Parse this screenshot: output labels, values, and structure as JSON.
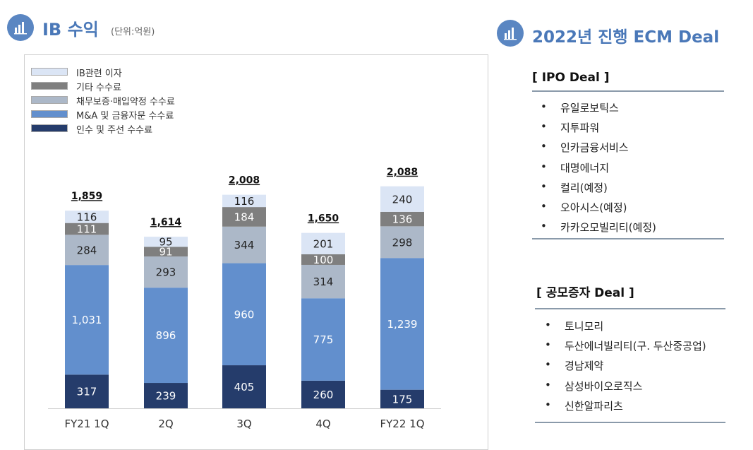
{
  "header_left": {
    "title": "IB 수익",
    "unit": "(단위:억원)"
  },
  "header_right": {
    "title": "2022년 진행 ECM Deal"
  },
  "ipo": {
    "title": "[ IPO Deal ]",
    "items": [
      "유일로보틱스",
      "지투파워",
      "인카금융서비스",
      "대명에너지",
      "컬리(예정)",
      "오아시스(예정)",
      "카카오모빌리티(예정)"
    ]
  },
  "rights": {
    "title": "[ 공모증자 Deal ]",
    "items": [
      "토니모리",
      "두산에너빌리티(구. 두산중공업)",
      "경남제약",
      "삼성바이오로직스",
      "신한알파리츠"
    ]
  },
  "bullet": "•",
  "chart_data": {
    "type": "bar",
    "stacked": true,
    "categories": [
      "FY21 1Q",
      "2Q",
      "3Q",
      "4Q",
      "FY22 1Q"
    ],
    "series": [
      {
        "name": "인수 및 주선 수수료",
        "values": [
          317,
          239,
          405,
          260,
          175
        ],
        "color": "#253c6b",
        "label_color": "#ffffff"
      },
      {
        "name": "M&A  및 금융자문 수수료",
        "values": [
          1031,
          896,
          960,
          775,
          1239
        ],
        "color": "#628fcd",
        "label_color": "#ffffff"
      },
      {
        "name": "채무보증·매입약정 수수료",
        "values": [
          284,
          293,
          344,
          314,
          298
        ],
        "color": "#acb8c8",
        "label_color": "#222222"
      },
      {
        "name": "기타 수수료",
        "values": [
          111,
          91,
          184,
          100,
          136
        ],
        "color": "#7f7f7f",
        "label_color": "#ffffff"
      },
      {
        "name": "IB관련 이자",
        "values": [
          116,
          95,
          116,
          201,
          240
        ],
        "color": "#dbe5f5",
        "label_color": "#222222"
      }
    ],
    "totals": [
      "1,859",
      "1,614",
      "2,008",
      "1,650",
      "2,088"
    ],
    "legend_order": [
      "IB관련 이자",
      "기타 수수료",
      "채무보증·매입약정 수수료",
      "M&A  및 금융자문 수수료",
      "인수 및 주선 수수료"
    ],
    "legend_placement": "top-left",
    "title": "",
    "xlabel": "",
    "ylabel": "",
    "ylim": [
      0,
      2400
    ],
    "grid": false
  }
}
